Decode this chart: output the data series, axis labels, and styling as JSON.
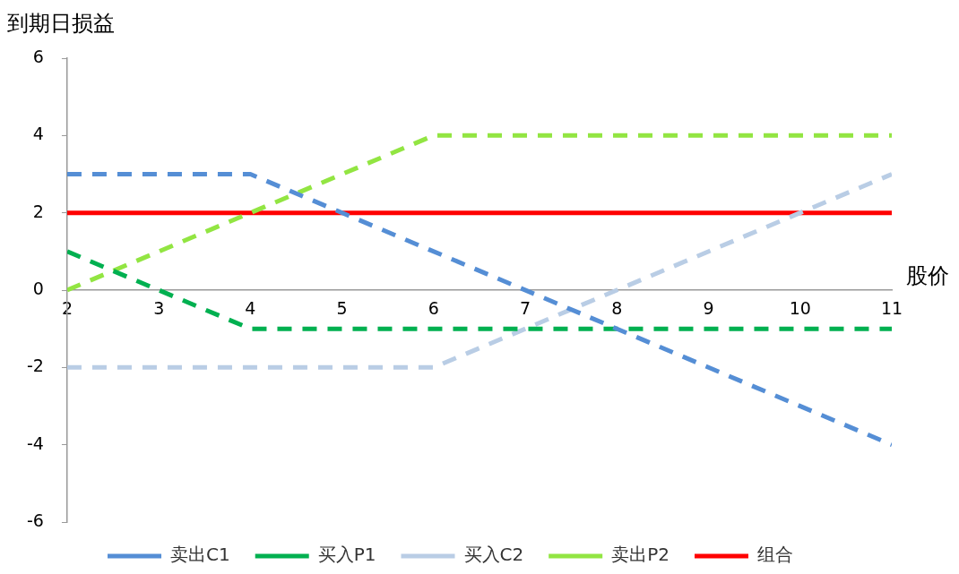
{
  "chart_data": {
    "type": "line",
    "ylabel": "到期日损益",
    "xlabel": "股价",
    "xlim": [
      2,
      11
    ],
    "xticks": [
      2,
      3,
      4,
      5,
      6,
      7,
      8,
      9,
      10,
      11
    ],
    "ylim": [
      -6,
      6
    ],
    "yticks": [
      -6,
      -4,
      -2,
      0,
      2,
      4,
      6
    ],
    "grid": false,
    "legend": "bottom",
    "marker": "none",
    "series": [
      {
        "name": "卖出C1",
        "color": "#558ed5",
        "line_style": "dashed",
        "x": [
          2,
          4,
          11
        ],
        "values": [
          3,
          3,
          -4
        ]
      },
      {
        "name": "买入P1",
        "color": "#00b050",
        "line_style": "dashed",
        "x": [
          2,
          4,
          11
        ],
        "values": [
          1,
          -1,
          -1
        ]
      },
      {
        "name": "买入C2",
        "color": "#b9cde5",
        "line_style": "dashed",
        "x": [
          2,
          6,
          11
        ],
        "values": [
          -2,
          -2,
          3
        ]
      },
      {
        "name": "卖出P2",
        "color": "#92e542",
        "line_style": "dashed",
        "x": [
          2,
          6,
          11
        ],
        "values": [
          0,
          4,
          4
        ]
      },
      {
        "name": "组合",
        "color": "#ff0000",
        "line_style": "solid",
        "x": [
          2,
          11
        ],
        "values": [
          2,
          2
        ]
      }
    ]
  }
}
